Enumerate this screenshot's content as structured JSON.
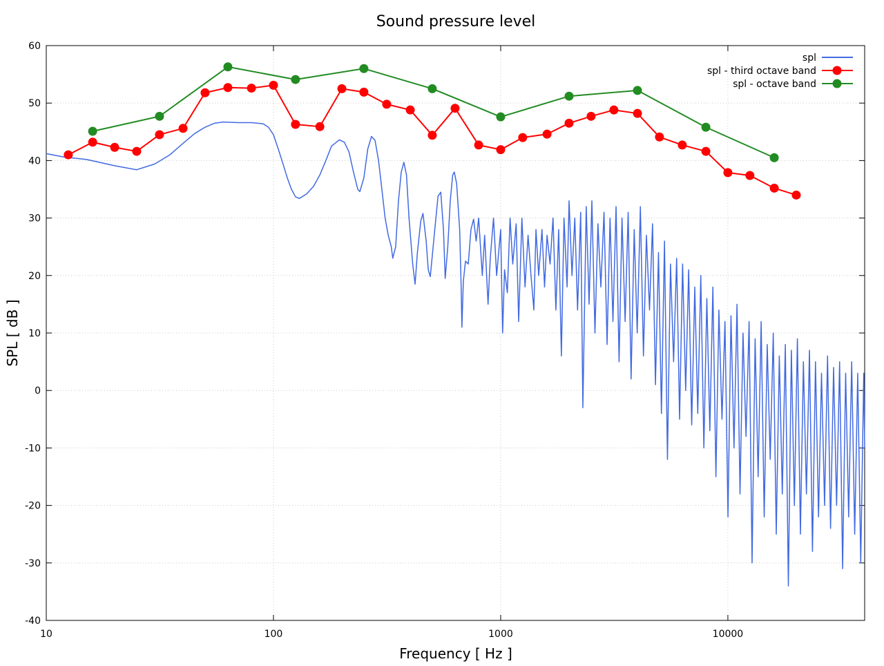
{
  "chart_data": {
    "type": "line",
    "title": "Sound pressure level",
    "x_label": "Frequency [ Hz ]",
    "y_label": "SPL [ dB ]",
    "xscale": "log",
    "xlim": [
      10,
      40000
    ],
    "xticks": [
      10,
      100,
      1000,
      10000
    ],
    "ylim": [
      -40,
      60
    ],
    "yticks": [
      -40,
      -30,
      -20,
      -10,
      0,
      10,
      20,
      30,
      40,
      50,
      60
    ],
    "grid": true,
    "legend": "top-right",
    "series": [
      {
        "name": "spl",
        "color": "#4169e1",
        "marker": "none",
        "x": [
          10,
          12,
          15,
          20,
          25,
          30,
          35,
          40,
          45,
          50,
          55,
          60,
          70,
          80,
          90,
          95,
          100,
          105,
          110,
          115,
          120,
          125,
          130,
          140,
          150,
          160,
          170,
          180,
          195,
          205,
          215,
          225,
          235,
          240,
          250,
          260,
          270,
          280,
          290,
          300,
          310,
          320,
          330,
          335,
          345,
          355,
          365,
          375,
          385,
          395,
          410,
          420,
          430,
          445,
          455,
          470,
          480,
          490,
          510,
          530,
          545,
          560,
          570,
          585,
          600,
          615,
          625,
          640,
          660,
          670,
          675,
          685,
          700,
          720,
          740,
          760,
          780,
          800,
          830,
          850,
          880,
          900,
          930,
          960,
          1000,
          1020,
          1040,
          1070,
          1100,
          1130,
          1170,
          1200,
          1240,
          1280,
          1320,
          1360,
          1400,
          1430,
          1470,
          1520,
          1560,
          1600,
          1650,
          1700,
          1750,
          1800,
          1850,
          1900,
          1960,
          2000,
          2060,
          2120,
          2180,
          2250,
          2300,
          2380,
          2450,
          2520,
          2600,
          2680,
          2760,
          2850,
          2940,
          3030,
          3120,
          3220,
          3320,
          3420,
          3530,
          3640,
          3750,
          3870,
          3990,
          4120,
          4250,
          4380,
          4520,
          4660,
          4800,
          4950,
          5100,
          5260,
          5420,
          5590,
          5770,
          5950,
          6130,
          6320,
          6520,
          6720,
          6930,
          7150,
          7370,
          7600,
          7840,
          8080,
          8330,
          8590,
          8860,
          9130,
          9420,
          9710,
          10010,
          10320,
          10640,
          10970,
          11310,
          11660,
          12020,
          12400,
          12780,
          13180,
          13590,
          14010,
          14450,
          14900,
          15360,
          15840,
          16330,
          16840,
          17360,
          17900,
          18460,
          19030,
          19620,
          20230,
          20860,
          21500,
          22170,
          22860,
          23570,
          24300,
          25060,
          25830,
          26640,
          27460,
          28310,
          29190,
          30100,
          31030,
          31990,
          32990,
          34010,
          35070,
          36160,
          37280,
          38440,
          39630,
          40000
        ],
        "values": [
          41.2,
          40.6,
          40.2,
          39.1,
          38.4,
          39.4,
          41,
          43,
          44.7,
          45.8,
          46.5,
          46.7,
          46.6,
          46.6,
          46.4,
          45.8,
          44.5,
          42,
          39.5,
          37,
          35,
          33.7,
          33.4,
          34.2,
          35.5,
          37.5,
          40,
          42.5,
          43.6,
          43.2,
          41.5,
          38,
          35,
          34.6,
          37,
          42,
          44.2,
          43.5,
          40,
          35,
          30,
          27,
          25,
          23,
          25,
          33,
          38,
          39.7,
          37.5,
          30,
          22,
          18.5,
          24,
          29.5,
          30.8,
          26,
          21,
          19.8,
          27,
          33.8,
          34.5,
          28,
          19.5,
          25,
          33,
          37.5,
          38,
          36,
          28,
          18,
          11,
          19,
          22.5,
          22,
          28,
          29.8,
          26,
          30,
          20,
          27,
          15,
          23,
          30,
          20,
          28,
          10,
          21,
          17,
          30,
          22,
          29,
          12,
          30,
          18,
          27,
          20,
          14,
          28,
          20,
          28,
          18,
          27,
          22,
          30,
          14,
          28,
          6,
          30,
          18,
          33,
          20,
          30,
          14,
          31,
          -3,
          32,
          15,
          33,
          10,
          29,
          18,
          31,
          8,
          30,
          12,
          32,
          5,
          30,
          12,
          31,
          2,
          28,
          10,
          32,
          6,
          27,
          14,
          29,
          1,
          24,
          -4,
          26,
          -12,
          22,
          5,
          23,
          -5,
          22,
          0,
          21,
          -6,
          18,
          -4,
          20,
          -10,
          16,
          -7,
          18,
          -15,
          14,
          -5,
          12,
          -22,
          13,
          -10,
          15,
          -18,
          10,
          -8,
          12,
          -30,
          9,
          -15,
          12,
          -22,
          8,
          -12,
          10,
          -25,
          6,
          -18,
          8,
          -34,
          7,
          -20,
          9,
          -25,
          5,
          -18,
          7,
          -28,
          5,
          -22,
          3,
          -20,
          6,
          -24,
          4,
          -20,
          5,
          -31,
          3,
          -22,
          5,
          -25,
          3,
          -30,
          3,
          -10
        ]
      },
      {
        "name": "spl - third octave band",
        "color": "#ff0000",
        "marker": "circle",
        "x": [
          12.5,
          16,
          20,
          25,
          31.5,
          40,
          50,
          63,
          80,
          100,
          125,
          160,
          200,
          250,
          315,
          400,
          500,
          630,
          800,
          1000,
          1250,
          1600,
          2000,
          2500,
          3150,
          4000,
          5000,
          6300,
          8000,
          10000,
          12500,
          16000,
          20000
        ],
        "values": [
          41,
          43.2,
          42.3,
          41.6,
          44.5,
          45.6,
          51.8,
          52.7,
          52.6,
          53.1,
          46.3,
          45.9,
          52.5,
          51.9,
          49.8,
          48.8,
          44.4,
          49.1,
          42.7,
          41.9,
          44,
          44.6,
          46.5,
          47.7,
          48.8,
          48.2,
          44.1,
          42.7,
          41.6,
          37.9,
          37.4,
          35.2,
          34
        ]
      },
      {
        "name": "spl - octave band",
        "color": "#228b22",
        "marker": "circle",
        "x": [
          16,
          31.5,
          63,
          125,
          250,
          500,
          1000,
          2000,
          4000,
          8000,
          16000
        ],
        "values": [
          45.1,
          47.7,
          56.3,
          54.1,
          56,
          52.5,
          47.6,
          51.2,
          52.2,
          45.8,
          40.5
        ]
      }
    ]
  }
}
